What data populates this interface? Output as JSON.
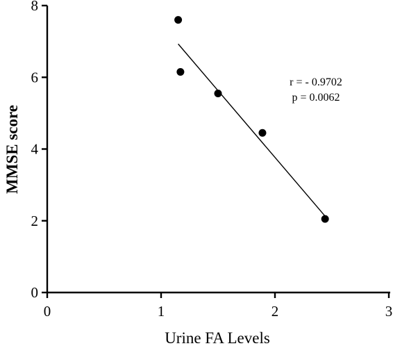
{
  "chart_data": {
    "type": "scatter",
    "xlabel": "Urine FA Levels",
    "ylabel": "MMSE score",
    "xlim": [
      0,
      3
    ],
    "ylim": [
      0,
      8
    ],
    "x_ticks": [
      "0",
      "1",
      "2",
      "3"
    ],
    "y_ticks": [
      "0",
      "2",
      "4",
      "6",
      "8"
    ],
    "points": [
      {
        "x": 1.15,
        "y": 7.6
      },
      {
        "x": 1.17,
        "y": 6.15
      },
      {
        "x": 1.5,
        "y": 5.55
      },
      {
        "x": 1.89,
        "y": 4.45
      },
      {
        "x": 2.44,
        "y": 2.05
      }
    ],
    "fit_line": {
      "x1": 1.15,
      "y1": 6.93,
      "x2": 2.44,
      "y2": 2.13
    },
    "annotations": [
      "r = - 0.9702",
      "p = 0.0062"
    ],
    "grid": false,
    "legend": "none"
  }
}
